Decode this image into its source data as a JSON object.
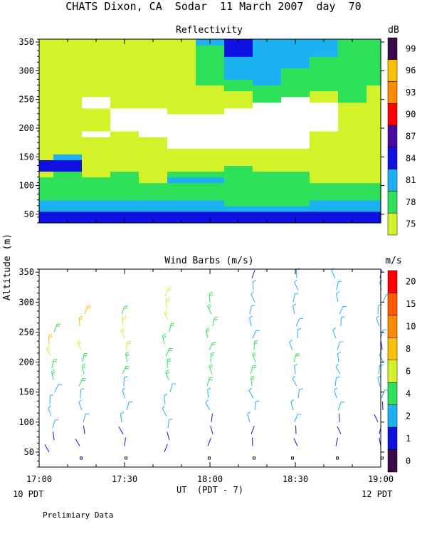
{
  "header": {
    "title": "CHATS Dixon, CA  Sodar  11 March 2007  day  70",
    "y_axis_label": "Altitude (m)",
    "x_axis_label": "UT  (PDT - 7)",
    "left_footer": "10 PDT",
    "right_footer": "12 PDT",
    "note": "Prelimiary Data"
  },
  "x_ticks": [
    "17:00",
    "17:30",
    "18:00",
    "18:30",
    "19:00"
  ],
  "colors": {
    "75": "#d4f22a",
    "78": "#2fe05b",
    "81": "#1cb2f2",
    "84": "#1010e0",
    "87": "#4a0aa0",
    "90": "#ff0000",
    "93": "#ff8a00",
    "96": "#ffc000",
    "99": "#3a0a4a",
    "white": "#ffffff"
  },
  "chart_data": [
    {
      "type": "heatmap",
      "title": "Reflectivity",
      "units": "dB",
      "x_range": [
        "17:00",
        "19:00"
      ],
      "ylim": [
        35,
        355
      ],
      "yticks": [
        50,
        100,
        150,
        200,
        250,
        300,
        350
      ],
      "legend": {
        "labels": [
          "75",
          "78",
          "81",
          "84",
          "87",
          "90",
          "93",
          "96",
          "99"
        ],
        "colors": [
          "#d4f22a",
          "#2fe05b",
          "#1cb2f2",
          "#1010e0",
          "#4a0aa0",
          "#ff0000",
          "#ff8a00",
          "#ffc000",
          "#3a0a4a"
        ]
      },
      "columns": [
        {
          "time": "17:00",
          "levels": [
            84,
            84,
            81,
            81,
            78,
            78,
            78,
            78,
            75,
            84,
            84,
            75,
            75,
            75,
            75,
            75,
            75,
            75,
            75,
            75,
            75,
            75,
            75,
            75,
            75,
            75,
            75,
            75,
            75,
            75,
            75,
            75
          ]
        },
        {
          "time": "17:10",
          "levels": [
            84,
            84,
            81,
            81,
            78,
            78,
            78,
            78,
            78,
            84,
            84,
            81,
            75,
            75,
            75,
            75,
            75,
            75,
            75,
            75,
            75,
            75,
            75,
            75,
            75,
            75,
            75,
            75,
            75,
            75,
            75,
            75
          ]
        },
        {
          "time": "17:20",
          "levels": [
            84,
            84,
            81,
            81,
            78,
            78,
            78,
            78,
            75,
            75,
            75,
            75,
            75,
            75,
            75,
            0,
            75,
            75,
            75,
            75,
            0,
            0,
            75,
            75,
            75,
            75,
            75,
            75,
            75,
            75,
            75,
            75
          ]
        },
        {
          "time": "17:30",
          "levels": [
            84,
            84,
            81,
            81,
            78,
            78,
            78,
            78,
            78,
            75,
            75,
            75,
            75,
            75,
            75,
            75,
            0,
            0,
            0,
            0,
            75,
            75,
            75,
            75,
            75,
            75,
            75,
            75,
            75,
            75,
            75,
            75
          ]
        },
        {
          "time": "17:40",
          "levels": [
            84,
            84,
            81,
            81,
            78,
            78,
            78,
            75,
            75,
            75,
            75,
            75,
            75,
            75,
            75,
            0,
            0,
            0,
            0,
            0,
            75,
            75,
            75,
            75,
            75,
            75,
            75,
            75,
            75,
            75,
            75,
            75
          ]
        },
        {
          "time": "17:50",
          "levels": [
            84,
            84,
            81,
            81,
            78,
            78,
            78,
            81,
            78,
            75,
            75,
            75,
            75,
            0,
            0,
            0,
            0,
            0,
            0,
            75,
            75,
            75,
            75,
            75,
            75,
            75,
            75,
            75,
            75,
            75,
            75,
            75
          ]
        },
        {
          "time": "18:00",
          "levels": [
            84,
            84,
            81,
            81,
            78,
            78,
            78,
            81,
            78,
            75,
            75,
            75,
            75,
            0,
            0,
            0,
            0,
            0,
            0,
            75,
            75,
            75,
            75,
            75,
            78,
            78,
            78,
            78,
            78,
            78,
            78,
            81
          ]
        },
        {
          "time": "18:10",
          "levels": [
            84,
            84,
            81,
            78,
            78,
            78,
            78,
            78,
            78,
            78,
            75,
            75,
            75,
            0,
            0,
            0,
            0,
            0,
            0,
            0,
            75,
            75,
            75,
            78,
            78,
            81,
            81,
            81,
            81,
            84,
            84,
            84
          ]
        },
        {
          "time": "18:20",
          "levels": [
            84,
            84,
            81,
            78,
            78,
            78,
            78,
            78,
            78,
            75,
            75,
            75,
            75,
            0,
            0,
            0,
            0,
            0,
            0,
            0,
            0,
            78,
            78,
            78,
            81,
            81,
            81,
            81,
            81,
            81,
            81,
            81
          ]
        },
        {
          "time": "18:30",
          "levels": [
            84,
            84,
            81,
            78,
            78,
            78,
            78,
            78,
            78,
            75,
            75,
            75,
            75,
            0,
            0,
            0,
            0,
            0,
            0,
            0,
            0,
            0,
            78,
            78,
            78,
            78,
            78,
            81,
            81,
            81,
            81,
            81
          ]
        },
        {
          "time": "18:40",
          "levels": [
            84,
            84,
            81,
            81,
            78,
            78,
            78,
            75,
            75,
            75,
            75,
            75,
            75,
            75,
            75,
            75,
            0,
            0,
            0,
            0,
            0,
            75,
            75,
            78,
            78,
            78,
            78,
            78,
            78,
            81,
            81,
            81
          ]
        },
        {
          "time": "18:50",
          "levels": [
            84,
            84,
            81,
            81,
            78,
            78,
            78,
            75,
            75,
            75,
            75,
            75,
            75,
            75,
            75,
            75,
            75,
            75,
            75,
            75,
            75,
            78,
            78,
            78,
            78,
            78,
            78,
            78,
            78,
            78,
            78,
            78
          ]
        },
        {
          "time": "19:00",
          "levels": [
            84,
            84,
            81,
            81,
            78,
            78,
            78,
            75,
            75,
            75,
            75,
            75,
            75,
            75,
            75,
            75,
            75,
            75,
            75,
            75,
            75,
            75,
            75,
            75,
            78,
            78,
            78,
            78,
            78,
            78,
            78,
            78
          ]
        }
      ]
    },
    {
      "type": "scatter",
      "title": "Wind Barbs (m/s)",
      "units": "m/s",
      "x_range": [
        "17:00",
        "19:00"
      ],
      "ylim": [
        25,
        355
      ],
      "yticks": [
        50,
        100,
        150,
        200,
        250,
        300,
        350
      ],
      "legend": {
        "labels": [
          "0",
          "1",
          "2",
          "4",
          "6",
          "8",
          "10",
          "15",
          "20"
        ],
        "colors": [
          "#3a0a4a",
          "#1010e0",
          "#1cb2f2",
          "#2fe05b",
          "#d4f22a",
          "#ffc000",
          "#ff8a00",
          "#ff5a00",
          "#ff0000"
        ]
      },
      "barbs_speed_ms_by_time": [
        {
          "time": "17:00",
          "altitudes": [
            50,
            70,
            90,
            110,
            130,
            150,
            170,
            190,
            210,
            230,
            250
          ],
          "speeds": [
            1,
            1,
            2,
            2,
            2,
            2,
            4,
            4,
            6,
            8,
            4
          ]
        },
        {
          "time": "17:15",
          "altitudes": [
            40,
            60,
            80,
            100,
            120,
            140,
            160,
            180,
            200,
            220,
            260,
            280
          ],
          "speeds": [
            0,
            1,
            1,
            2,
            2,
            2,
            4,
            4,
            4,
            6,
            8,
            8
          ]
        },
        {
          "time": "17:30",
          "altitudes": [
            40,
            60,
            80,
            100,
            120,
            140,
            160,
            180,
            200,
            220,
            240,
            260,
            280
          ],
          "speeds": [
            0,
            1,
            1,
            2,
            2,
            2,
            2,
            4,
            4,
            6,
            6,
            6,
            4
          ]
        },
        {
          "time": "17:45",
          "altitudes": [
            50,
            70,
            90,
            110,
            130,
            150,
            170,
            190,
            210,
            230,
            250,
            270,
            290,
            310
          ],
          "speeds": [
            1,
            1,
            2,
            2,
            2,
            2,
            4,
            4,
            4,
            4,
            4,
            6,
            6,
            6
          ]
        },
        {
          "time": "18:00",
          "altitudes": [
            40,
            60,
            80,
            100,
            120,
            140,
            160,
            180,
            200,
            220,
            240,
            260,
            280,
            300
          ],
          "speeds": [
            0,
            1,
            1,
            1,
            2,
            2,
            4,
            4,
            4,
            4,
            4,
            4,
            4,
            4
          ]
        },
        {
          "time": "18:15",
          "altitudes": [
            40,
            60,
            80,
            100,
            120,
            140,
            160,
            180,
            200,
            220,
            240,
            260,
            280,
            300,
            320,
            340
          ],
          "speeds": [
            0,
            1,
            1,
            2,
            2,
            2,
            4,
            4,
            4,
            4,
            2,
            2,
            2,
            2,
            2,
            1
          ]
        },
        {
          "time": "18:30",
          "altitudes": [
            40,
            60,
            80,
            100,
            120,
            140,
            160,
            180,
            200,
            220,
            240,
            260,
            280,
            300,
            320,
            340
          ],
          "speeds": [
            0,
            1,
            1,
            2,
            2,
            2,
            2,
            2,
            4,
            2,
            2,
            2,
            2,
            2,
            2,
            2
          ]
        },
        {
          "time": "18:45",
          "altitudes": [
            40,
            60,
            80,
            100,
            120,
            140,
            160,
            180,
            200,
            220,
            240,
            260,
            280,
            300,
            320,
            340
          ],
          "speeds": [
            0,
            1,
            1,
            1,
            2,
            2,
            2,
            2,
            2,
            2,
            2,
            2,
            2,
            2,
            2,
            2
          ]
        },
        {
          "time": "19:00",
          "altitudes": [
            40,
            60,
            80,
            100,
            120,
            140,
            160,
            180,
            200,
            220,
            240,
            260,
            280,
            300,
            320,
            340
          ],
          "speeds": [
            0,
            1,
            1,
            1,
            1,
            2,
            2,
            2,
            2,
            1,
            2,
            2,
            2,
            2,
            2,
            1
          ]
        }
      ]
    }
  ]
}
